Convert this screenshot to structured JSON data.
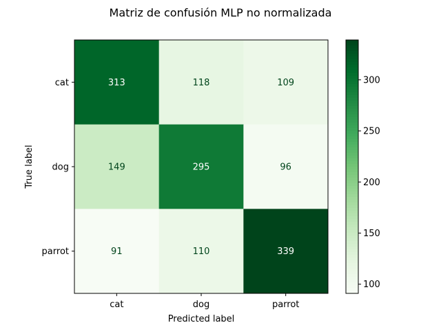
{
  "chart_data": {
    "type": "heatmap",
    "title": "Matriz de confusión MLP no normalizada",
    "xlabel": "Predicted label",
    "ylabel": "True label",
    "x_categories": [
      "cat",
      "dog",
      "parrot"
    ],
    "y_categories": [
      "cat",
      "dog",
      "parrot"
    ],
    "values": [
      [
        313,
        118,
        109
      ],
      [
        149,
        295,
        96
      ],
      [
        91,
        110,
        339
      ]
    ],
    "colormap": "Greens",
    "colorbar": {
      "range": [
        91,
        339
      ],
      "ticks": [
        100,
        150,
        200,
        250,
        300
      ]
    },
    "grid": false
  }
}
